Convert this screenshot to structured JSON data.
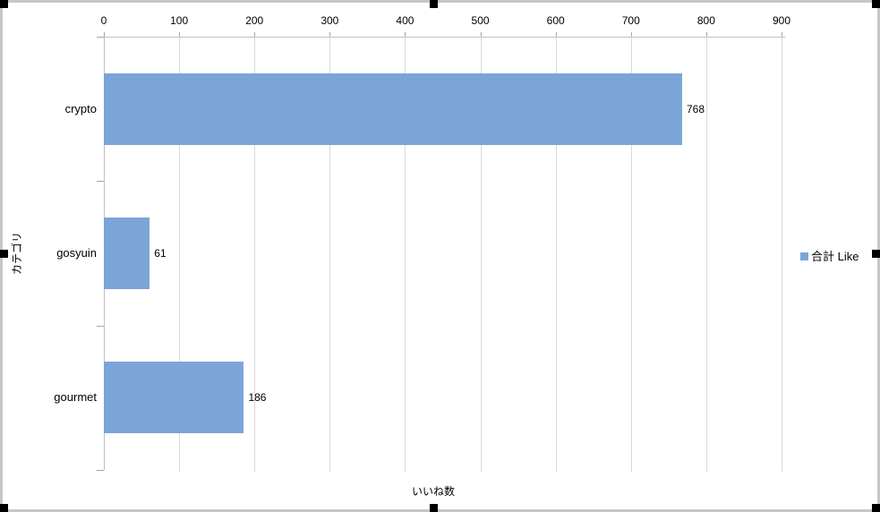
{
  "chart_data": {
    "type": "bar",
    "orientation": "horizontal",
    "categories": [
      "crypto",
      "gosyuin",
      "gourmet"
    ],
    "series": [
      {
        "name": "合計 Like",
        "values": [
          768,
          61,
          186
        ]
      }
    ],
    "data_labels": [
      "768",
      "61",
      "186"
    ],
    "xlabel": "いいね数",
    "ylabel": "カテゴリ",
    "xlim": [
      0,
      900
    ],
    "x_ticks": [
      0,
      100,
      200,
      300,
      400,
      500,
      600,
      700,
      800,
      900
    ],
    "grid": true,
    "legend_position": "right",
    "colors": {
      "bar_fill": "#7ba5d7",
      "gridline": "#d9d9d9",
      "axis_line": "#bfbfbf",
      "tick_mark": "#a6a6a6",
      "text": "#000000",
      "frame_border": "#c6c6c6",
      "selection_handle": "#000000"
    }
  },
  "selection": {
    "handles_visible": true,
    "handle_count": 8
  }
}
